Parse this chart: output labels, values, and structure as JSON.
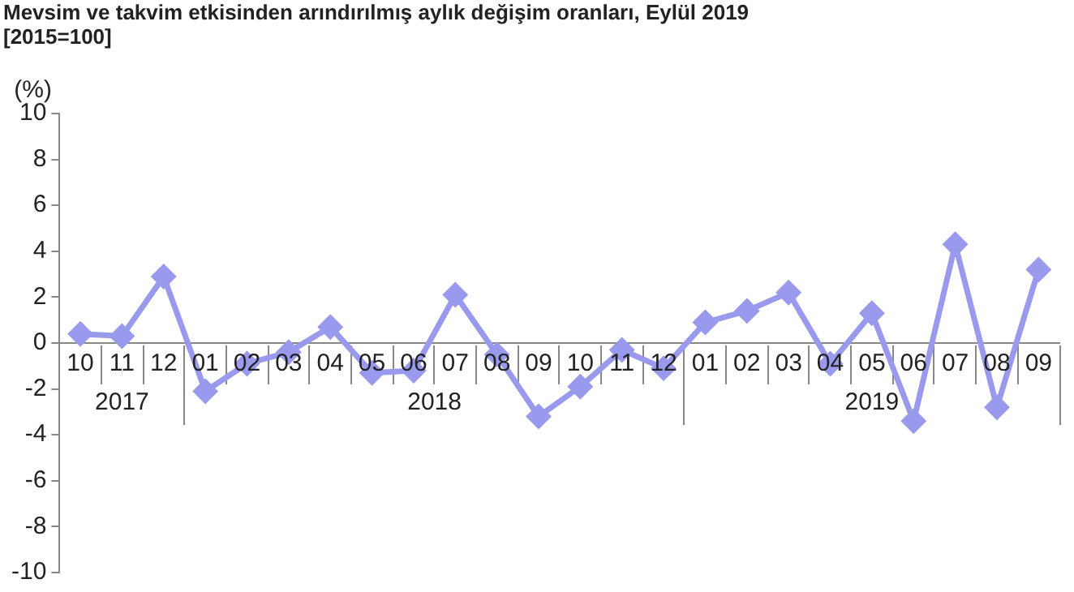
{
  "chart_data": {
    "type": "line",
    "title": "Mevsim ve takvim etkisinden arındırılmış aylık değişim oranları, Eylül 2019",
    "subtitle": "[2015=100]",
    "ylabel": "(%)",
    "categories": [
      "10",
      "11",
      "12",
      "01",
      "02",
      "03",
      "04",
      "05",
      "06",
      "07",
      "08",
      "09",
      "10",
      "11",
      "12",
      "01",
      "02",
      "03",
      "04",
      "05",
      "06",
      "07",
      "08",
      "09"
    ],
    "annotations": [
      "2017",
      "2018",
      "2019"
    ],
    "series": [
      {
        "color": "#9999ee",
        "values": [
          0.4,
          0.3,
          2.9,
          -2.1,
          -0.9,
          -0.4,
          0.7,
          -1.3,
          -1.2,
          2.1,
          -0.5,
          -3.2,
          -1.9,
          -0.3,
          -1.1,
          0.9,
          1.4,
          2.2,
          -0.9,
          1.3,
          -3.4,
          4.3,
          -2.8,
          3.2
        ]
      }
    ],
    "ylim": [
      -10,
      10
    ],
    "yticks": [
      -10,
      -8,
      -6,
      -4,
      -2,
      0,
      2,
      4,
      6,
      8,
      10
    ],
    "marker": "diamond",
    "line_style": "solid",
    "grid": false,
    "legend": false
  }
}
